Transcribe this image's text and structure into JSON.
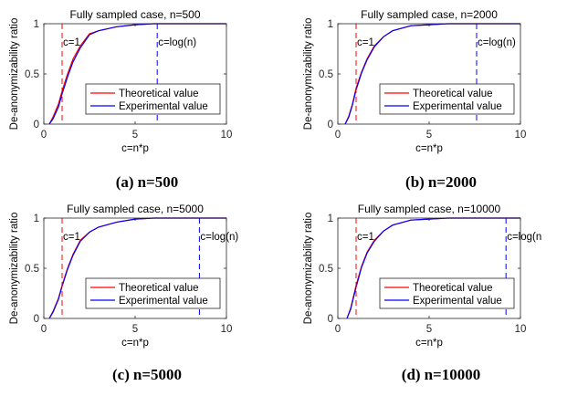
{
  "colors": {
    "theory": "#ff0000",
    "experiment": "#0000ff",
    "axis": "#262626",
    "background": "#ffffff"
  },
  "charts": [
    {
      "caption_label": "(a)",
      "caption_text": "n=500",
      "chart_data": {
        "type": "line",
        "title": "Fully sampled case, n=500",
        "xlabel": "c=n*p",
        "ylabel": "De-anonymizability ratio",
        "xlim": [
          0,
          10
        ],
        "ylim": [
          0,
          1
        ],
        "xticks": [
          "0",
          "5",
          "10"
        ],
        "yticks": [
          "0",
          "0.5",
          "1"
        ],
        "legend_position": "lower-right",
        "vlines": [
          {
            "x": 1,
            "label": "c=1",
            "color": "red"
          },
          {
            "x": 6.21,
            "label": "c=log(n)",
            "color": "blue"
          }
        ],
        "series": [
          {
            "name": "Theoretical value",
            "color": "red",
            "x": [
              0.3,
              0.5,
              0.8,
              1.0,
              1.3,
              1.6,
              2.0,
              2.5,
              3.0,
              4.0,
              5.0,
              6.0,
              8.0,
              10.0
            ],
            "y": [
              0.0,
              0.07,
              0.2,
              0.33,
              0.5,
              0.65,
              0.78,
              0.9,
              0.93,
              0.97,
              0.99,
              1.0,
              1.0,
              1.0
            ]
          },
          {
            "name": "Experimental value",
            "color": "blue",
            "x": [
              0.3,
              0.5,
              0.8,
              1.0,
              1.3,
              1.6,
              2.0,
              2.5,
              3.0,
              4.0,
              5.0,
              6.0,
              8.0,
              10.0
            ],
            "y": [
              0.0,
              0.05,
              0.17,
              0.3,
              0.47,
              0.62,
              0.76,
              0.89,
              0.93,
              0.97,
              0.99,
              1.0,
              1.0,
              1.0
            ]
          }
        ]
      }
    },
    {
      "caption_label": "(b)",
      "caption_text": "n=2000",
      "chart_data": {
        "type": "line",
        "title": "Fully sampled case, n=2000",
        "xlabel": "c=n*p",
        "ylabel": "De-anonymizability ratio",
        "xlim": [
          0,
          10
        ],
        "ylim": [
          0,
          1
        ],
        "xticks": [
          "0",
          "5",
          "10"
        ],
        "yticks": [
          "0",
          "0.5",
          "1"
        ],
        "legend_position": "lower-right",
        "vlines": [
          {
            "x": 1,
            "label": "c=1",
            "color": "red"
          },
          {
            "x": 7.6,
            "label": "c=log(n)",
            "color": "blue"
          }
        ],
        "series": [
          {
            "name": "Theoretical value",
            "color": "red",
            "x": [
              0.4,
              0.6,
              0.8,
              1.0,
              1.3,
              1.6,
              2.0,
              2.5,
              3.0,
              4.0,
              5.0,
              6.0,
              8.0,
              10.0
            ],
            "y": [
              0.0,
              0.08,
              0.2,
              0.36,
              0.52,
              0.65,
              0.78,
              0.87,
              0.93,
              0.98,
              0.99,
              1.0,
              1.0,
              1.0
            ]
          },
          {
            "name": "Experimental value",
            "color": "blue",
            "x": [
              0.4,
              0.6,
              0.8,
              1.0,
              1.3,
              1.6,
              2.0,
              2.5,
              3.0,
              4.0,
              5.0,
              6.0,
              8.0,
              10.0
            ],
            "y": [
              0.0,
              0.07,
              0.19,
              0.34,
              0.51,
              0.64,
              0.77,
              0.87,
              0.93,
              0.98,
              0.99,
              1.0,
              1.0,
              1.0
            ]
          }
        ]
      }
    },
    {
      "caption_label": "(c)",
      "caption_text": "n=5000",
      "chart_data": {
        "type": "line",
        "title": "Fully sampled case, n=5000",
        "xlabel": "c=n*p",
        "ylabel": "De-anonymizability ratio",
        "xlim": [
          0,
          10
        ],
        "ylim": [
          0,
          1
        ],
        "xticks": [
          "0",
          "5",
          "10"
        ],
        "yticks": [
          "0",
          "0.5",
          "1"
        ],
        "legend_position": "lower-right",
        "vlines": [
          {
            "x": 1,
            "label": "c=1",
            "color": "red"
          },
          {
            "x": 8.52,
            "label": "c=log(n)",
            "color": "blue"
          }
        ],
        "series": [
          {
            "name": "Theoretical value",
            "color": "red",
            "x": [
              0.3,
              0.5,
              0.8,
              1.0,
              1.3,
              1.6,
              2.0,
              2.5,
              3.0,
              4.0,
              5.0,
              6.0,
              8.0,
              10.0
            ],
            "y": [
              0.0,
              0.07,
              0.2,
              0.33,
              0.5,
              0.64,
              0.78,
              0.86,
              0.91,
              0.96,
              0.99,
              1.0,
              1.0,
              1.0
            ]
          },
          {
            "name": "Experimental value",
            "color": "blue",
            "x": [
              0.3,
              0.5,
              0.8,
              1.0,
              1.3,
              1.6,
              2.0,
              2.5,
              3.0,
              4.0,
              5.0,
              6.0,
              8.0,
              10.0
            ],
            "y": [
              0.0,
              0.06,
              0.19,
              0.32,
              0.49,
              0.63,
              0.77,
              0.86,
              0.91,
              0.96,
              0.99,
              1.0,
              1.0,
              1.0
            ]
          }
        ]
      }
    },
    {
      "caption_label": "(d)",
      "caption_text": "n=10000",
      "chart_data": {
        "type": "line",
        "title": "Fully sampled case, n=10000",
        "xlabel": "c=n*p",
        "ylabel": "De-anonymizability ratio",
        "xlim": [
          0,
          10
        ],
        "ylim": [
          0,
          1
        ],
        "xticks": [
          "0",
          "5",
          "10"
        ],
        "yticks": [
          "0",
          "0.5",
          "1"
        ],
        "legend_position": "lower-right",
        "vlines": [
          {
            "x": 1,
            "label": "c=1",
            "color": "red"
          },
          {
            "x": 9.21,
            "label": "c=log(n",
            "color": "blue"
          }
        ],
        "series": [
          {
            "name": "Theoretical value",
            "color": "red",
            "x": [
              0.5,
              0.7,
              1.0,
              1.3,
              1.6,
              2.0,
              2.5,
              3.0,
              4.0,
              5.0,
              6.0,
              8.0,
              10.0
            ],
            "y": [
              0.0,
              0.1,
              0.33,
              0.52,
              0.66,
              0.78,
              0.87,
              0.93,
              0.98,
              0.99,
              1.0,
              1.0,
              1.0
            ]
          },
          {
            "name": "Experimental value",
            "color": "blue",
            "x": [
              0.5,
              0.7,
              1.0,
              1.3,
              1.6,
              2.0,
              2.5,
              3.0,
              4.0,
              5.0,
              6.0,
              8.0,
              10.0
            ],
            "y": [
              0.0,
              0.09,
              0.31,
              0.51,
              0.65,
              0.77,
              0.87,
              0.93,
              0.98,
              0.99,
              1.0,
              1.0,
              1.0
            ]
          }
        ]
      }
    }
  ]
}
